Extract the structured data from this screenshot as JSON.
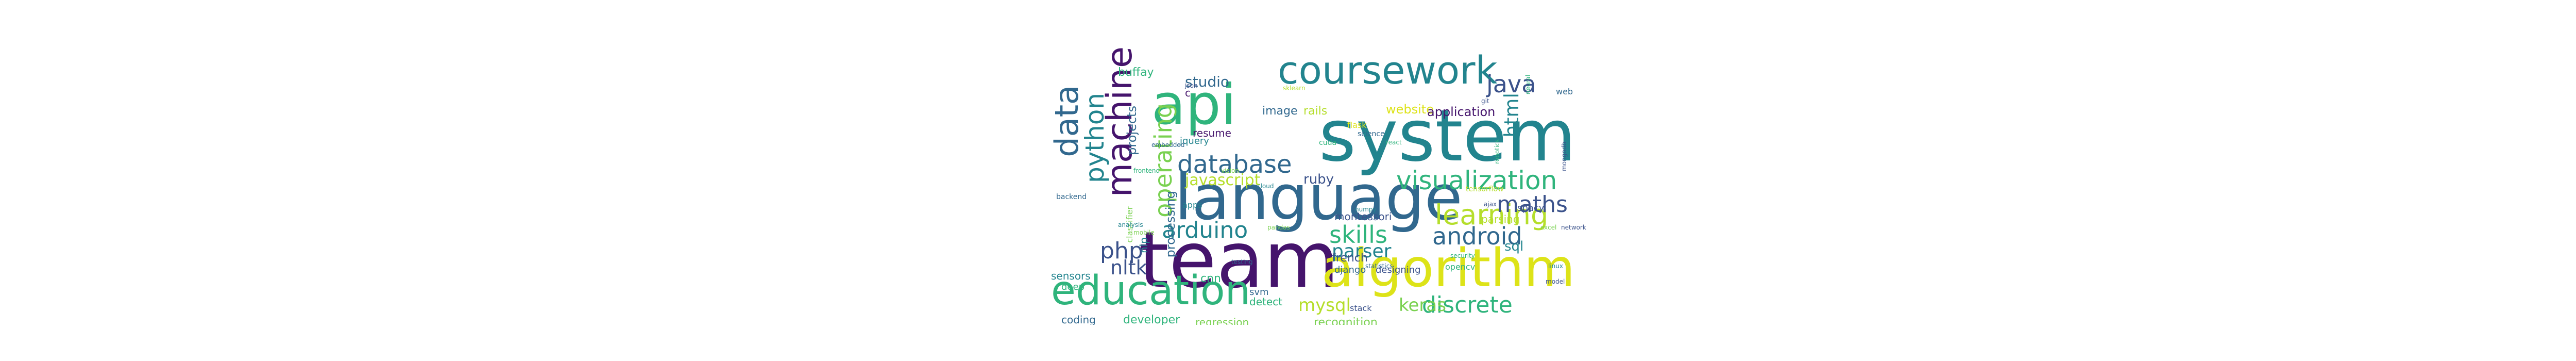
{
  "colors": {
    "purple": "#45146c",
    "indigo": "#3b528b",
    "blue": "#31688e",
    "teal": "#22848e",
    "green": "#2fb47c",
    "lightgreen": "#7ad151",
    "yellow": "#dde318",
    "lime": "#b5de2b"
  },
  "words": [
    {
      "text": "system",
      "color": "#22848e"
    },
    {
      "text": "language",
      "color": "#31688e"
    },
    {
      "text": "team",
      "color": "#45146c"
    },
    {
      "text": "algorithm",
      "color": "#dde318"
    },
    {
      "text": "api",
      "color": "#2fb47c"
    },
    {
      "text": "coursework",
      "color": "#22848e"
    },
    {
      "text": "education",
      "color": "#2fb47c"
    },
    {
      "text": "machine",
      "color": "#45146c"
    },
    {
      "text": "data",
      "color": "#31688e"
    },
    {
      "text": "python",
      "color": "#22848e"
    },
    {
      "text": "learning",
      "color": "#b5de2b"
    },
    {
      "text": "visualization",
      "color": "#2fb47c"
    },
    {
      "text": "database",
      "color": "#31688e"
    },
    {
      "text": "operating",
      "color": "#7ad151"
    },
    {
      "text": "java",
      "color": "#3b528b"
    },
    {
      "text": "html",
      "color": "#22848e"
    },
    {
      "text": "maths",
      "color": "#3b528b"
    },
    {
      "text": "arduino",
      "color": "#22848e"
    },
    {
      "text": "skills",
      "color": "#2fb47c"
    },
    {
      "text": "android",
      "color": "#31688e"
    },
    {
      "text": "discrete",
      "color": "#2fb47c"
    },
    {
      "text": "php",
      "color": "#3b528b"
    },
    {
      "text": "nltk",
      "color": "#3b528b"
    },
    {
      "text": "parser",
      "color": "#22848e"
    },
    {
      "text": "keras",
      "color": "#7ad151"
    },
    {
      "text": "mysql",
      "color": "#b5de2b"
    },
    {
      "text": "javascript",
      "color": "#b5de2b"
    },
    {
      "text": "studio",
      "color": "#31688e"
    },
    {
      "text": "ruby",
      "color": "#3b528b"
    },
    {
      "text": "sql",
      "color": "#22848e"
    },
    {
      "text": "projects",
      "color": "#31688e"
    },
    {
      "text": "processing",
      "color": "#31688e"
    },
    {
      "text": "buffay",
      "color": "#2fb47c"
    },
    {
      "text": "website",
      "color": "#dde318"
    },
    {
      "text": "application",
      "color": "#45146c"
    },
    {
      "text": "image",
      "color": "#31688e"
    },
    {
      "text": "rails",
      "color": "#b5de2b"
    },
    {
      "text": "resume",
      "color": "#45146c"
    },
    {
      "text": "jquery",
      "color": "#22848e"
    },
    {
      "text": "montessori",
      "color": "#3b528b"
    },
    {
      "text": "parsing",
      "color": "#b5de2b"
    },
    {
      "text": "spacy",
      "color": "#3b528b"
    },
    {
      "text": "french",
      "color": "#3b528b"
    },
    {
      "text": "sensors",
      "color": "#22848e"
    },
    {
      "text": "deep",
      "color": "#2fb47c"
    },
    {
      "text": "cnn",
      "color": "#2fb47c"
    },
    {
      "text": "svm",
      "color": "#31688e"
    },
    {
      "text": "detect",
      "color": "#2fb47c"
    },
    {
      "text": "django",
      "color": "#31688e"
    },
    {
      "text": "designing",
      "color": "#3b528b"
    },
    {
      "text": "coding",
      "color": "#31688e"
    },
    {
      "text": "developer",
      "color": "#2fb47c"
    },
    {
      "text": "regression",
      "color": "#7ad151"
    },
    {
      "text": "recognition",
      "color": "#7ad151"
    },
    {
      "text": "stack",
      "color": "#3b528b"
    },
    {
      "text": "nlp",
      "color": "#22848e"
    },
    {
      "text": "classifier",
      "color": "#7ad151"
    },
    {
      "text": "apps",
      "color": "#22848e"
    },
    {
      "text": "flask",
      "color": "#dde318"
    },
    {
      "text": "science",
      "color": "#31688e"
    },
    {
      "text": "tensorflow",
      "color": "#b5de2b"
    },
    {
      "text": "cuda",
      "color": "#2fb47c"
    },
    {
      "text": "web",
      "color": "#31688e"
    },
    {
      "text": "ajax",
      "color": "#3b528b"
    },
    {
      "text": "opencv",
      "color": "#2fb47c"
    },
    {
      "text": "backend",
      "color": "#31688e"
    },
    {
      "text": "c",
      "color": "#45146c"
    },
    {
      "text": "json",
      "color": "#3b528b"
    },
    {
      "text": "mongodb",
      "color": "#3b528b"
    },
    {
      "text": "frontend",
      "color": "#2fb47c"
    },
    {
      "text": "linux",
      "color": "#22848e"
    },
    {
      "text": "excel",
      "color": "#7ad151"
    },
    {
      "text": "git",
      "color": "#3b528b"
    },
    {
      "text": "react",
      "color": "#2fb47c"
    },
    {
      "text": "statistics",
      "color": "#31688e"
    },
    {
      "text": "numpy",
      "color": "#22848e"
    },
    {
      "text": "pandas",
      "color": "#7ad151"
    },
    {
      "text": "sklearn",
      "color": "#b5de2b"
    },
    {
      "text": "embedded",
      "color": "#31688e"
    },
    {
      "text": "robotics",
      "color": "#2fb47c"
    },
    {
      "text": "network",
      "color": "#3b528b"
    },
    {
      "text": "cloud",
      "color": "#22848e"
    },
    {
      "text": "security",
      "color": "#2fb47c"
    },
    {
      "text": "mobile",
      "color": "#7ad151"
    },
    {
      "text": "testing",
      "color": "#31688e"
    },
    {
      "text": "analysis",
      "color": "#22848e"
    },
    {
      "text": "model",
      "color": "#3b528b"
    },
    {
      "text": "neural",
      "color": "#2fb47c"
    },
    {
      "text": "vision",
      "color": "#7ad151"
    }
  ]
}
